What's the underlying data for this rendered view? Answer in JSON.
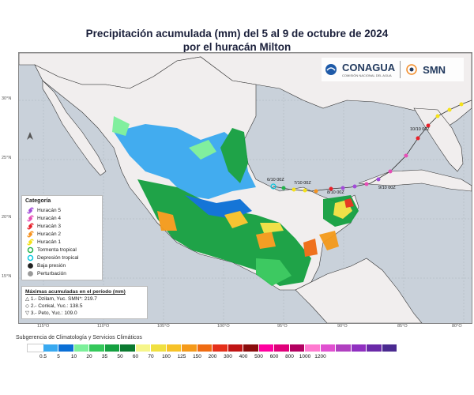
{
  "title": {
    "line1": "Precipitación acumulada (mm) del 5 al 9 de octubre de 2024",
    "line2": "por el huracán Milton"
  },
  "logos": {
    "conagua": "CONAGUA",
    "conagua_sub": "COMISIÓN NACIONAL DEL AGUA",
    "smn": "SMN"
  },
  "legend": {
    "title": "Categoría",
    "items": [
      {
        "label": "Huracán 5",
        "color": "#a24bd9",
        "shape": "hurricane"
      },
      {
        "label": "Huracán 4",
        "color": "#e64db6",
        "shape": "hurricane"
      },
      {
        "label": "Huracán 3",
        "color": "#e8202a",
        "shape": "hurricane"
      },
      {
        "label": "Huracán 2",
        "color": "#f6921e",
        "shape": "hurricane"
      },
      {
        "label": "Huracán 1",
        "color": "#f4e11a",
        "shape": "hurricane"
      },
      {
        "label": "Tormenta tropical",
        "color": "#20b24a",
        "shape": "ring"
      },
      {
        "label": "Depresión tropical",
        "color": "#00c8e0",
        "shape": "ring"
      },
      {
        "label": "Baja presión",
        "color": "#222222",
        "shape": "dot"
      },
      {
        "label": "Perturbación",
        "color": "#9a9a9a",
        "shape": "dot"
      }
    ]
  },
  "maxima": {
    "header": "Máximas acumuladas en el período (mm)",
    "items": [
      {
        "symbol": "△",
        "text": "1.- Dzilam, Yuc. SMN*: 219.7"
      },
      {
        "symbol": "◇",
        "text": "2.- Conkal, Yuc.: 138.5"
      },
      {
        "symbol": "▽",
        "text": "3.- Peto, Yuc.: 109.0"
      }
    ]
  },
  "track_labels": [
    {
      "text": "6/10 00Z"
    },
    {
      "text": "7/10 00Z"
    },
    {
      "text": "8/10 00Z"
    },
    {
      "text": "9/10 00Z"
    },
    {
      "text": "10/10 00Z"
    }
  ],
  "longitudes": [
    "115°O",
    "110°O",
    "105°O",
    "100°O",
    "95°O",
    "90°O",
    "85°O",
    "80°O"
  ],
  "latitudes": [
    "30°N",
    "25°N",
    "20°N",
    "15°N"
  ],
  "subgerencia": "Subgerencia de Climatología y Servicios Climáticos",
  "scale": {
    "colors": [
      "#ffffff",
      "#39a9f0",
      "#0a6fd6",
      "#7cf09a",
      "#34c85a",
      "#14a040",
      "#0b7a30",
      "#f6f68a",
      "#f0e040",
      "#f7c228",
      "#f59a1a",
      "#ef6b12",
      "#e5301a",
      "#c01414",
      "#8a0c0c",
      "#ff00a0",
      "#e0007a",
      "#b20060",
      "#ff7ad0",
      "#e050d0",
      "#b040c0",
      "#9030c0",
      "#6a2aa8",
      "#4a2a90"
    ],
    "labels": [
      "0.5",
      "5",
      "10",
      "20",
      "35",
      "50",
      "60",
      "70",
      "100",
      "125",
      "150",
      "200",
      "300",
      "400",
      "500",
      "600",
      "800",
      "1000",
      "1200"
    ]
  }
}
